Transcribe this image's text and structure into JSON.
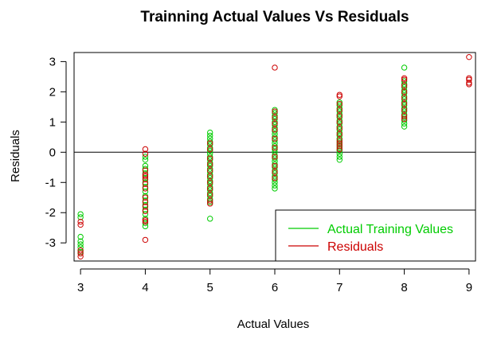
{
  "chart_data": {
    "type": "scatter",
    "title": "Trainning Actual Values Vs Residuals",
    "xlabel": "Actual Values",
    "ylabel": "Residuals",
    "xlim": [
      2.9,
      9.1
    ],
    "ylim": [
      -3.6,
      3.3
    ],
    "x_ticks": [
      3,
      4,
      5,
      6,
      7,
      8,
      9
    ],
    "y_ticks": [
      -3,
      -2,
      -1,
      0,
      1,
      2,
      3
    ],
    "reference_line_y": 0,
    "grid": false,
    "legend_position": "bottom-right",
    "legend": [
      {
        "label": "Actual Training Values",
        "color": "#00cc00"
      },
      {
        "label": "Residuals",
        "color": "#cc0000"
      }
    ],
    "series": [
      {
        "name": "Actual Training Values",
        "color": "#00cc00",
        "points": [
          [
            3,
            -2.05
          ],
          [
            3,
            -2.15
          ],
          [
            3,
            -2.8
          ],
          [
            3,
            -2.95
          ],
          [
            3,
            -3.05
          ],
          [
            3,
            -3.15
          ],
          [
            3,
            -3.3
          ],
          [
            4,
            -0.15
          ],
          [
            4,
            -0.25
          ],
          [
            4,
            -0.45
          ],
          [
            4,
            -0.55
          ],
          [
            4,
            -0.7
          ],
          [
            4,
            -0.85
          ],
          [
            4,
            -1.0
          ],
          [
            4,
            -1.15
          ],
          [
            4,
            -1.3
          ],
          [
            4,
            -1.45
          ],
          [
            4,
            -1.6
          ],
          [
            4,
            -1.75
          ],
          [
            4,
            -1.9
          ],
          [
            4,
            -2.05
          ],
          [
            4,
            -2.2
          ],
          [
            4,
            -2.35
          ],
          [
            4,
            -2.45
          ],
          [
            5,
            0.65
          ],
          [
            5,
            0.55
          ],
          [
            5,
            0.45
          ],
          [
            5,
            0.35
          ],
          [
            5,
            0.25
          ],
          [
            5,
            0.15
          ],
          [
            5,
            0.05
          ],
          [
            5,
            -0.05
          ],
          [
            5,
            -0.15
          ],
          [
            5,
            -0.25
          ],
          [
            5,
            -0.35
          ],
          [
            5,
            -0.45
          ],
          [
            5,
            -0.55
          ],
          [
            5,
            -0.65
          ],
          [
            5,
            -0.75
          ],
          [
            5,
            -0.85
          ],
          [
            5,
            -0.95
          ],
          [
            5,
            -1.05
          ],
          [
            5,
            -1.15
          ],
          [
            5,
            -1.25
          ],
          [
            5,
            -1.35
          ],
          [
            5,
            -1.45
          ],
          [
            5,
            -1.55
          ],
          [
            5,
            -1.65
          ],
          [
            5,
            -2.2
          ],
          [
            6,
            1.4
          ],
          [
            6,
            1.3
          ],
          [
            6,
            1.2
          ],
          [
            6,
            1.1
          ],
          [
            6,
            1.0
          ],
          [
            6,
            0.9
          ],
          [
            6,
            0.8
          ],
          [
            6,
            0.7
          ],
          [
            6,
            0.6
          ],
          [
            6,
            0.5
          ],
          [
            6,
            0.4
          ],
          [
            6,
            0.3
          ],
          [
            6,
            0.2
          ],
          [
            6,
            0.1
          ],
          [
            6,
            0.0
          ],
          [
            6,
            -0.1
          ],
          [
            6,
            -0.2
          ],
          [
            6,
            -0.3
          ],
          [
            6,
            -0.4
          ],
          [
            6,
            -0.5
          ],
          [
            6,
            -0.6
          ],
          [
            6,
            -0.7
          ],
          [
            6,
            -0.8
          ],
          [
            6,
            -0.9
          ],
          [
            6,
            -1.0
          ],
          [
            6,
            -1.1
          ],
          [
            6,
            -1.2
          ],
          [
            7,
            1.65
          ],
          [
            7,
            1.55
          ],
          [
            7,
            1.45
          ],
          [
            7,
            1.35
          ],
          [
            7,
            1.25
          ],
          [
            7,
            1.15
          ],
          [
            7,
            1.05
          ],
          [
            7,
            0.95
          ],
          [
            7,
            0.85
          ],
          [
            7,
            0.75
          ],
          [
            7,
            0.65
          ],
          [
            7,
            0.55
          ],
          [
            7,
            0.45
          ],
          [
            7,
            0.35
          ],
          [
            7,
            0.25
          ],
          [
            7,
            0.15
          ],
          [
            7,
            0.05
          ],
          [
            7,
            -0.05
          ],
          [
            7,
            -0.15
          ],
          [
            7,
            -0.25
          ],
          [
            8,
            2.8
          ],
          [
            8,
            2.35
          ],
          [
            8,
            2.25
          ],
          [
            8,
            2.15
          ],
          [
            8,
            2.05
          ],
          [
            8,
            1.95
          ],
          [
            8,
            1.85
          ],
          [
            8,
            1.75
          ],
          [
            8,
            1.65
          ],
          [
            8,
            1.55
          ],
          [
            8,
            1.45
          ],
          [
            8,
            1.35
          ],
          [
            8,
            1.25
          ],
          [
            8,
            1.15
          ],
          [
            8,
            1.05
          ],
          [
            8,
            0.95
          ],
          [
            8,
            0.85
          ]
        ]
      },
      {
        "name": "Residuals",
        "color": "#cc0000",
        "points": [
          [
            3,
            -2.3
          ],
          [
            3,
            -2.4
          ],
          [
            3,
            -3.25
          ],
          [
            3,
            -3.35
          ],
          [
            3,
            -3.45
          ],
          [
            4,
            0.1
          ],
          [
            4,
            -0.05
          ],
          [
            4,
            -0.6
          ],
          [
            4,
            -0.75
          ],
          [
            4,
            -0.8
          ],
          [
            4,
            -0.9
          ],
          [
            4,
            -1.05
          ],
          [
            4,
            -1.2
          ],
          [
            4,
            -1.5
          ],
          [
            4,
            -1.65
          ],
          [
            4,
            -1.8
          ],
          [
            4,
            -1.95
          ],
          [
            4,
            -2.25
          ],
          [
            4,
            -2.3
          ],
          [
            4,
            -2.9
          ],
          [
            5,
            0.3
          ],
          [
            5,
            0.1
          ],
          [
            5,
            -0.2
          ],
          [
            5,
            -0.4
          ],
          [
            5,
            -0.6
          ],
          [
            5,
            -0.8
          ],
          [
            5,
            -1.0
          ],
          [
            5,
            -1.2
          ],
          [
            5,
            -1.4
          ],
          [
            5,
            -1.6
          ],
          [
            5,
            -1.7
          ],
          [
            6,
            2.8
          ],
          [
            6,
            1.35
          ],
          [
            6,
            1.15
          ],
          [
            6,
            0.95
          ],
          [
            6,
            0.75
          ],
          [
            6,
            0.45
          ],
          [
            6,
            0.15
          ],
          [
            6,
            -0.15
          ],
          [
            6,
            -0.45
          ],
          [
            6,
            -0.65
          ],
          [
            6,
            -0.85
          ],
          [
            7,
            1.9
          ],
          [
            7,
            1.85
          ],
          [
            7,
            1.6
          ],
          [
            7,
            1.4
          ],
          [
            7,
            1.2
          ],
          [
            7,
            1.0
          ],
          [
            7,
            0.8
          ],
          [
            7,
            0.6
          ],
          [
            7,
            0.4
          ],
          [
            7,
            0.3
          ],
          [
            7,
            0.2
          ],
          [
            7,
            0.1
          ],
          [
            8,
            2.45
          ],
          [
            8,
            2.4
          ],
          [
            8,
            2.2
          ],
          [
            8,
            2.0
          ],
          [
            8,
            1.8
          ],
          [
            8,
            1.6
          ],
          [
            8,
            1.4
          ],
          [
            8,
            1.2
          ],
          [
            8,
            1.1
          ],
          [
            9,
            3.15
          ],
          [
            9,
            2.45
          ],
          [
            9,
            2.4
          ],
          [
            9,
            2.3
          ],
          [
            9,
            2.25
          ]
        ]
      }
    ]
  }
}
